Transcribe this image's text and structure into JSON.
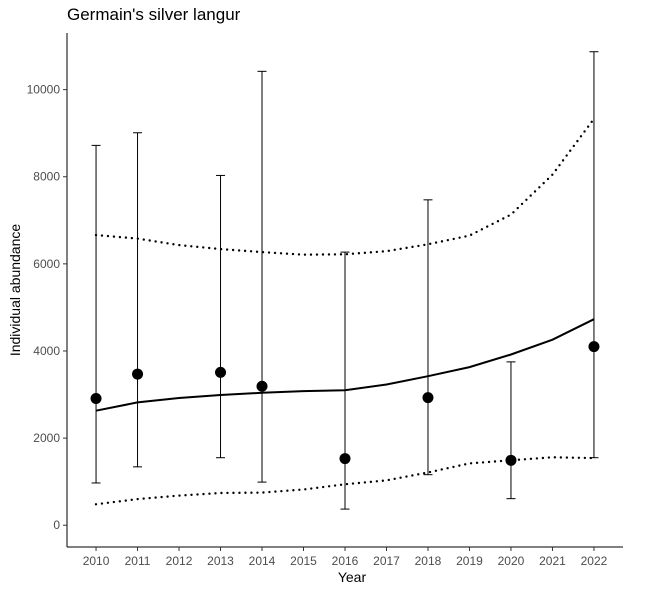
{
  "chart_data": {
    "type": "scatter",
    "title": "Germain's silver langur",
    "xlabel": "Year",
    "ylabel": "Individual abundance",
    "xlim": [
      2009.3,
      2022.7
    ],
    "ylim": [
      -500,
      11300
    ],
    "x_ticks": [
      2010,
      2011,
      2012,
      2013,
      2014,
      2015,
      2016,
      2017,
      2018,
      2019,
      2020,
      2021,
      2022
    ],
    "y_ticks": [
      0,
      2000,
      4000,
      6000,
      8000,
      10000
    ],
    "y_tick_labels": [
      "0",
      "2000",
      "4000",
      "6000",
      "8000",
      "10000"
    ],
    "grid": false,
    "legend": "none",
    "series": [
      {
        "kind": "points_with_error_bars",
        "x": [
          2010,
          2011,
          2013,
          2014,
          2016,
          2018,
          2020,
          2022
        ],
        "y": [
          2910,
          3470,
          3510,
          3190,
          1530,
          2930,
          1490,
          4100
        ],
        "lower": [
          970,
          1340,
          1550,
          990,
          370,
          1160,
          610,
          1550
        ],
        "upper": [
          8720,
          9010,
          8030,
          10420,
          6270,
          7470,
          3750,
          10870
        ]
      },
      {
        "kind": "trend",
        "line_style": "solid",
        "x": [
          2010,
          2011,
          2012,
          2013,
          2014,
          2015,
          2016,
          2017,
          2018,
          2019,
          2020,
          2021,
          2022
        ],
        "y": [
          2630,
          2820,
          2920,
          2990,
          3040,
          3080,
          3100,
          3230,
          3420,
          3630,
          3920,
          4260,
          4730
        ]
      },
      {
        "kind": "trend",
        "line_style": "dotted",
        "x": [
          2010,
          2011,
          2012,
          2013,
          2014,
          2015,
          2016,
          2017,
          2018,
          2019,
          2020,
          2021,
          2022
        ],
        "y": [
          6660,
          6580,
          6430,
          6340,
          6270,
          6210,
          6220,
          6290,
          6450,
          6650,
          7130,
          8050,
          9330
        ]
      },
      {
        "kind": "trend",
        "line_style": "dotted",
        "x": [
          2010,
          2011,
          2012,
          2013,
          2014,
          2015,
          2016,
          2017,
          2018,
          2019,
          2020,
          2021,
          2022
        ],
        "y": [
          480,
          600,
          680,
          740,
          750,
          820,
          940,
          1030,
          1210,
          1420,
          1490,
          1560,
          1540
        ]
      }
    ]
  }
}
